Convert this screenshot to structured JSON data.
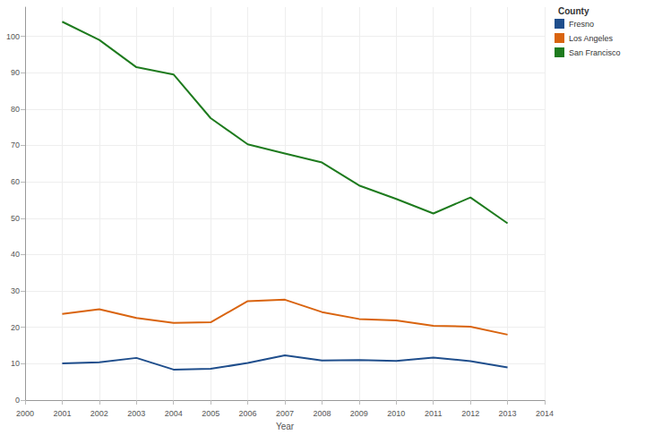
{
  "chart_data": {
    "type": "line",
    "x_label": "Year",
    "legend_title": "County",
    "legend": "top-right",
    "grid": true,
    "x": [
      2001,
      2002,
      2003,
      2004,
      2005,
      2006,
      2007,
      2008,
      2009,
      2010,
      2011,
      2012,
      2013
    ],
    "xlim": [
      2000,
      2014
    ],
    "xticks": [
      2000,
      2001,
      2002,
      2003,
      2004,
      2005,
      2006,
      2007,
      2008,
      2009,
      2010,
      2011,
      2012,
      2013,
      2014
    ],
    "ylim": [
      -1,
      108
    ],
    "yticks": [
      0,
      10,
      20,
      30,
      40,
      50,
      60,
      70,
      80,
      90,
      100
    ],
    "series": [
      {
        "name": "Fresno",
        "color": "#1f4e8c",
        "values": [
          10.1,
          10.4,
          11.6,
          8.4,
          8.6,
          10.2,
          12.3,
          10.9,
          11.0,
          10.8,
          11.7,
          10.7,
          9.0
        ]
      },
      {
        "name": "Los Angeles",
        "color": "#d9640f",
        "values": [
          23.7,
          25.0,
          22.6,
          21.2,
          21.4,
          27.2,
          27.6,
          24.2,
          22.3,
          21.9,
          20.4,
          20.2,
          18.0
        ]
      },
      {
        "name": "San Francisco",
        "color": "#1e7b1e",
        "values": [
          104.0,
          99.0,
          91.5,
          89.5,
          77.5,
          70.3,
          67.8,
          65.3,
          59.0,
          55.3,
          51.3,
          55.7,
          48.6
        ]
      }
    ]
  }
}
